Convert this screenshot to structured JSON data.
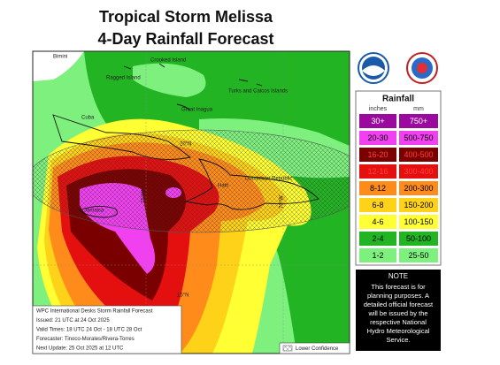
{
  "title": [
    "Tropical Storm Melissa",
    "4-Day Rainfall Forecast"
  ],
  "map_labels": [
    "Bimini",
    "Crooked Island",
    "Ragged Island",
    "Turks and Caicos Islands",
    "Cuba",
    "Great Inagua",
    "20°N",
    "Haiti",
    "Dominican Republic",
    "Jamaica",
    "75°W",
    "70°W",
    "15°N"
  ],
  "info_box": [
    "WPC International Desks Storm Rainfall Forecast",
    "Issued: 21 UTC at 24 Oct 2025",
    "Valid Times: 18 UTC 24 Oct - 18 UTC 28 Oct",
    "Forecaster: Tinoco-Morales/Rivera-Torres",
    "Next Update: 25 Oct 2025 at 12 UTC"
  ],
  "lower_confidence": "Lower Confidence",
  "legend": {
    "title": "Rainfall",
    "units": [
      "inches",
      "mm"
    ],
    "rows": [
      {
        "inches": "30+",
        "mm": "750+",
        "color": "#9b0a9e"
      },
      {
        "inches": "20-30",
        "mm": "500-750",
        "color": "#f040f0"
      },
      {
        "inches": "16-20",
        "mm": "400-500",
        "color": "#7a0000"
      },
      {
        "inches": "12-16",
        "mm": "300-400",
        "color": "#e41010"
      },
      {
        "inches": "8-12",
        "mm": "200-300",
        "color": "#ff8c1a"
      },
      {
        "inches": "6-8",
        "mm": "150-200",
        "color": "#ffd21a"
      },
      {
        "inches": "4-6",
        "mm": "100-150",
        "color": "#ffff33"
      },
      {
        "inches": "2-4",
        "mm": "50-100",
        "color": "#22b422"
      },
      {
        "inches": "1-2",
        "mm": "25-50",
        "color": "#7ef07e"
      }
    ]
  },
  "note": {
    "title": "NOTE",
    "lines": [
      "This forecast is for",
      "planning purposes. A",
      "detailed official forecast",
      "will be issued by the",
      "respective National",
      "Hydro Meteorological",
      "Service."
    ]
  }
}
